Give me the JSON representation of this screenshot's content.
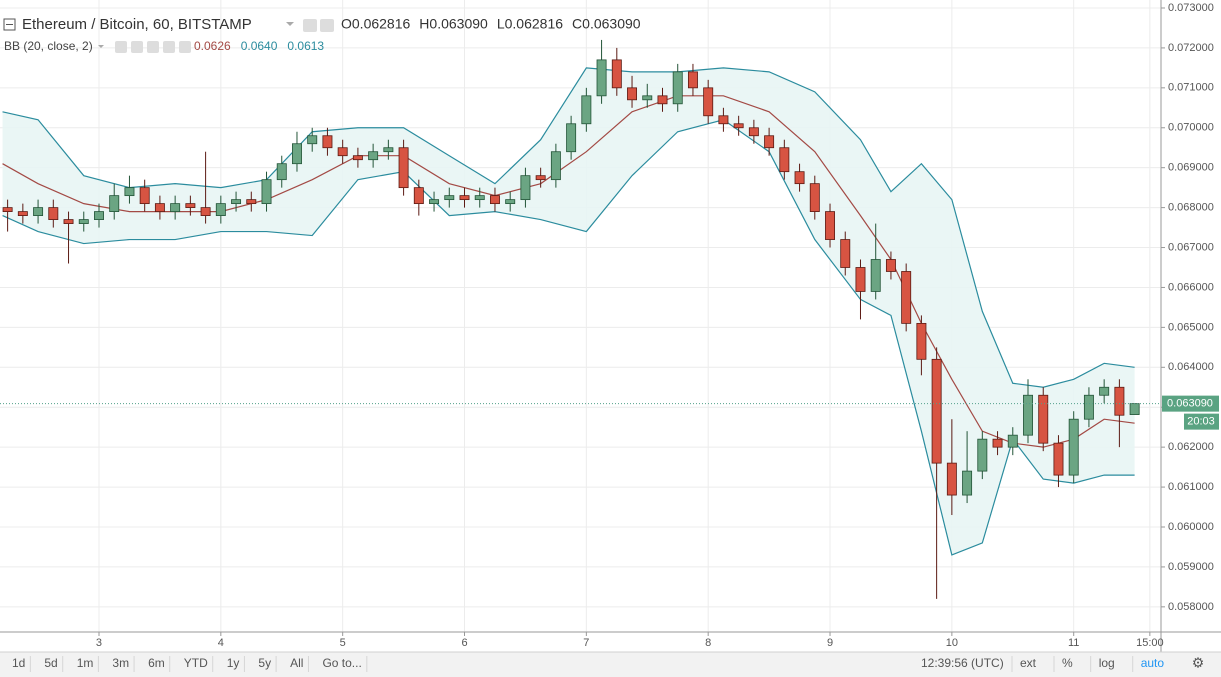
{
  "chart_data": {
    "type": "candlestick",
    "title": "Ethereum / Bitcoin, 60, BITSTAMP",
    "ohlc_header": [
      {
        "key": "O",
        "text": "0.062816"
      },
      {
        "key": "H",
        "text": "0.063090"
      },
      {
        "key": "L",
        "text": "0.062816"
      },
      {
        "key": "C",
        "text": "0.063090"
      }
    ],
    "indicator": {
      "label": "BB (20, close, 2)",
      "values": [
        "0.0626",
        "0.0640",
        "0.0613"
      ]
    },
    "x": [
      6,
      9,
      12,
      15,
      18,
      21,
      24,
      27,
      30,
      33,
      36,
      39,
      42,
      45,
      48,
      51,
      54,
      57,
      60,
      63,
      66,
      69,
      72,
      75,
      78,
      81,
      84,
      87,
      90,
      93,
      96,
      99,
      102,
      105,
      108,
      111,
      114,
      117,
      120,
      123,
      126,
      129,
      132,
      135,
      138,
      141,
      144,
      147,
      150,
      153,
      156,
      159,
      162,
      165,
      168,
      171,
      174,
      177,
      180,
      183,
      186,
      189,
      192,
      195,
      198,
      201,
      204,
      207,
      210,
      213,
      216,
      219,
      222,
      225,
      228
    ],
    "open": [
      0.068,
      0.0679,
      0.0678,
      0.068,
      0.0677,
      0.0676,
      0.0677,
      0.0679,
      0.0683,
      0.0685,
      0.0681,
      0.0679,
      0.0681,
      0.068,
      0.0678,
      0.0681,
      0.0682,
      0.0681,
      0.0687,
      0.0691,
      0.0696,
      0.0698,
      0.0695,
      0.0693,
      0.0692,
      0.0694,
      0.0695,
      0.0685,
      0.0681,
      0.0682,
      0.0683,
      0.0682,
      0.0683,
      0.0681,
      0.0682,
      0.0688,
      0.0687,
      0.0694,
      0.0701,
      0.0708,
      0.0717,
      0.071,
      0.0707,
      0.0708,
      0.0706,
      0.0714,
      0.071,
      0.0703,
      0.0701,
      0.07,
      0.0698,
      0.0695,
      0.0689,
      0.0686,
      0.0679,
      0.0672,
      0.0665,
      0.0659,
      0.0667,
      0.0664,
      0.0651,
      0.0642,
      0.0616,
      0.0608,
      0.0614,
      0.0622,
      0.062,
      0.0623,
      0.0633,
      0.0621,
      0.0613,
      0.0627,
      0.0633,
      0.0635,
      0.062816
    ],
    "high": [
      0.0682,
      0.0681,
      0.0682,
      0.0682,
      0.0679,
      0.0679,
      0.0681,
      0.0686,
      0.0688,
      0.0687,
      0.0683,
      0.0683,
      0.0683,
      0.0694,
      0.0683,
      0.0684,
      0.0684,
      0.0689,
      0.0693,
      0.0699,
      0.07,
      0.07,
      0.0697,
      0.0695,
      0.0696,
      0.0697,
      0.0697,
      0.0687,
      0.0684,
      0.0685,
      0.0685,
      0.0685,
      0.0685,
      0.0684,
      0.069,
      0.069,
      0.0696,
      0.0703,
      0.071,
      0.0722,
      0.072,
      0.0713,
      0.0711,
      0.071,
      0.0716,
      0.0716,
      0.0712,
      0.0705,
      0.0703,
      0.0702,
      0.07,
      0.0697,
      0.0691,
      0.0688,
      0.0681,
      0.0674,
      0.0667,
      0.0676,
      0.0669,
      0.0666,
      0.0653,
      0.0645,
      0.0627,
      0.0624,
      0.0624,
      0.0624,
      0.0625,
      0.0637,
      0.0635,
      0.0623,
      0.0629,
      0.0635,
      0.0637,
      0.0637,
      0.06309
    ],
    "low": [
      0.0674,
      0.0676,
      0.0676,
      0.0675,
      0.0666,
      0.0674,
      0.0675,
      0.0677,
      0.0681,
      0.0679,
      0.0677,
      0.0677,
      0.0678,
      0.0676,
      0.0676,
      0.0679,
      0.0679,
      0.0679,
      0.0685,
      0.0689,
      0.0694,
      0.0693,
      0.0691,
      0.069,
      0.069,
      0.0692,
      0.0683,
      0.0678,
      0.0679,
      0.068,
      0.068,
      0.068,
      0.0679,
      0.0679,
      0.068,
      0.0685,
      0.0685,
      0.0692,
      0.0699,
      0.0706,
      0.0708,
      0.0705,
      0.0705,
      0.0704,
      0.0704,
      0.0708,
      0.0701,
      0.0699,
      0.0698,
      0.0696,
      0.0693,
      0.0687,
      0.0684,
      0.0677,
      0.067,
      0.0663,
      0.0652,
      0.0657,
      0.0662,
      0.0649,
      0.0638,
      0.0582,
      0.0603,
      0.0606,
      0.0612,
      0.0618,
      0.0618,
      0.0621,
      0.0619,
      0.061,
      0.0611,
      0.0625,
      0.0631,
      0.062,
      0.062816
    ],
    "close": [
      0.0679,
      0.0678,
      0.068,
      0.0677,
      0.0676,
      0.0677,
      0.0679,
      0.0683,
      0.0685,
      0.0681,
      0.0679,
      0.0681,
      0.068,
      0.0678,
      0.0681,
      0.0682,
      0.0681,
      0.0687,
      0.0691,
      0.0696,
      0.0698,
      0.0695,
      0.0693,
      0.0692,
      0.0694,
      0.0695,
      0.0685,
      0.0681,
      0.0682,
      0.0683,
      0.0682,
      0.0683,
      0.0681,
      0.0682,
      0.0688,
      0.0687,
      0.0694,
      0.0701,
      0.0708,
      0.0717,
      0.071,
      0.0707,
      0.0708,
      0.0706,
      0.0714,
      0.071,
      0.0703,
      0.0701,
      0.07,
      0.0698,
      0.0695,
      0.0689,
      0.0686,
      0.0679,
      0.0672,
      0.0665,
      0.0659,
      0.0667,
      0.0664,
      0.0651,
      0.0642,
      0.0616,
      0.0608,
      0.0614,
      0.0622,
      0.062,
      0.0623,
      0.0633,
      0.0621,
      0.0613,
      0.0627,
      0.0633,
      0.0635,
      0.0628,
      0.06309
    ],
    "bands": {
      "x": [
        5,
        12,
        21,
        30,
        39,
        48,
        57,
        66,
        75,
        84,
        93,
        102,
        111,
        120,
        129,
        138,
        147,
        156,
        165,
        174,
        180,
        186,
        192,
        198,
        204,
        210,
        216,
        222,
        228
      ],
      "upper": [
        0.0704,
        0.0702,
        0.0688,
        0.0685,
        0.0686,
        0.0685,
        0.0687,
        0.0699,
        0.07,
        0.07,
        0.0693,
        0.0686,
        0.0697,
        0.0715,
        0.0714,
        0.0714,
        0.0715,
        0.0714,
        0.0709,
        0.0697,
        0.0684,
        0.0691,
        0.0682,
        0.0654,
        0.0636,
        0.0635,
        0.0637,
        0.0641,
        0.064
      ],
      "middle": [
        0.0691,
        0.0686,
        0.0681,
        0.0679,
        0.0679,
        0.0679,
        0.0682,
        0.0687,
        0.0693,
        0.0693,
        0.0686,
        0.0683,
        0.0686,
        0.0694,
        0.0704,
        0.0708,
        0.0708,
        0.0704,
        0.0694,
        0.0678,
        0.0667,
        0.0651,
        0.0637,
        0.0624,
        0.0621,
        0.062,
        0.0622,
        0.0627,
        0.0626
      ],
      "lower": [
        0.0678,
        0.0674,
        0.0671,
        0.0672,
        0.0672,
        0.0674,
        0.0674,
        0.0673,
        0.0687,
        0.0689,
        0.0678,
        0.0679,
        0.0677,
        0.0674,
        0.0688,
        0.0699,
        0.0702,
        0.0694,
        0.0672,
        0.0657,
        0.0653,
        0.0624,
        0.0593,
        0.0596,
        0.0622,
        0.0612,
        0.0611,
        0.0613,
        0.0613
      ]
    },
    "colors": {
      "up": "#6ba583",
      "up_border": "#225437",
      "down": "#d75442",
      "down_border": "#5b1a13",
      "band": "#2b8c9e",
      "basis": "#a34a45",
      "band_fill": "#e8f5f4"
    },
    "last_price": {
      "value": 0.06309,
      "label": "0.063090"
    },
    "countdown": "20:03",
    "xlim": [
      4.5,
      233
    ],
    "ylim": [
      0.05737,
      0.0732
    ],
    "xticks": [
      {
        "value": 24,
        "label": "3"
      },
      {
        "value": 48,
        "label": "4"
      },
      {
        "value": 72,
        "label": "5"
      },
      {
        "value": 96,
        "label": "6"
      },
      {
        "value": 120,
        "label": "7"
      },
      {
        "value": 144,
        "label": "8"
      },
      {
        "value": 168,
        "label": "9"
      },
      {
        "value": 192,
        "label": "10"
      },
      {
        "value": 216,
        "label": "11"
      },
      {
        "value": 231,
        "label": "15:00"
      }
    ],
    "yticks": [
      {
        "value": 0.058,
        "label": "0.058000"
      },
      {
        "value": 0.059,
        "label": "0.059000"
      },
      {
        "value": 0.06,
        "label": "0.060000"
      },
      {
        "value": 0.061,
        "label": "0.061000"
      },
      {
        "value": 0.062,
        "label": "0.062000"
      },
      {
        "value": 0.063,
        "label": "0.063000"
      },
      {
        "value": 0.064,
        "label": "0.064000"
      },
      {
        "value": 0.065,
        "label": "0.065000"
      },
      {
        "value": 0.066,
        "label": "0.066000"
      },
      {
        "value": 0.067,
        "label": "0.067000"
      },
      {
        "value": 0.068,
        "label": "0.068000"
      },
      {
        "value": 0.069,
        "label": "0.069000"
      },
      {
        "value": 0.07,
        "label": "0.070000"
      },
      {
        "value": 0.071,
        "label": "0.071000"
      },
      {
        "value": 0.072,
        "label": "0.072000"
      },
      {
        "value": 0.073,
        "label": "0.073000"
      }
    ],
    "grid": true
  },
  "toolbar": {
    "ranges": [
      "1d",
      "5d",
      "1m",
      "3m",
      "6m",
      "YTD",
      "1y",
      "5y",
      "All",
      "Go to..."
    ],
    "clock": "12:39:56 (UTC)",
    "options": [
      "ext",
      "%",
      "log",
      "auto"
    ]
  }
}
